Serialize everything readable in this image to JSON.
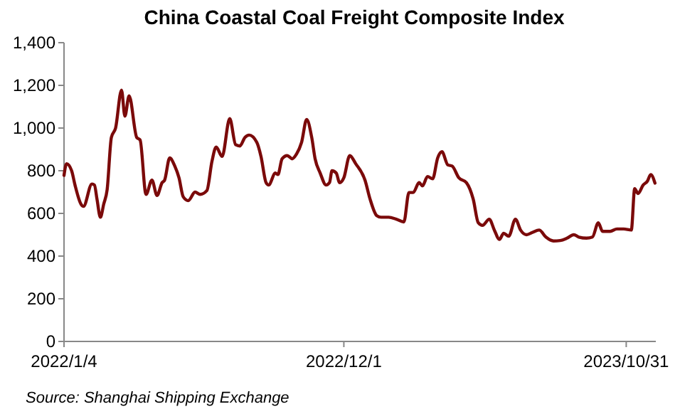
{
  "chart_data": {
    "type": "line",
    "title": "China Coastal Coal Freight Composite Index",
    "annotations": [
      "Source:  Shanghai Shipping Exchange"
    ],
    "x": [
      "2022-01-04",
      "2022-01-07",
      "2022-01-13",
      "2022-01-17",
      "2022-01-24",
      "2022-01-27",
      "2022-02-06",
      "2022-02-09",
      "2022-02-12",
      "2022-02-16",
      "2022-02-20",
      "2022-02-24",
      "2022-03-01",
      "2022-03-06",
      "2022-03-13",
      "2022-03-17",
      "2022-03-22",
      "2022-03-31",
      "2022-04-04",
      "2022-04-11",
      "2022-04-18",
      "2022-04-24",
      "2022-04-30",
      "2022-05-03",
      "2022-05-09",
      "2022-05-15",
      "2022-05-20",
      "2022-05-25",
      "2022-05-31",
      "2022-06-08",
      "2022-06-14",
      "2022-06-22",
      "2022-06-28",
      "2022-07-03",
      "2022-07-10",
      "2022-07-19",
      "2022-07-26",
      "2022-07-31",
      "2022-08-06",
      "2022-08-11",
      "2022-08-20",
      "2022-08-25",
      "2022-08-31",
      "2022-09-03",
      "2022-09-11",
      "2022-09-14",
      "2022-09-19",
      "2022-09-25",
      "2022-10-01",
      "2022-10-06",
      "2022-10-12",
      "2022-10-18",
      "2022-10-24",
      "2022-10-28",
      "2022-11-03",
      "2022-11-10",
      "2022-11-14",
      "2022-11-17",
      "2022-11-22",
      "2022-11-26",
      "2022-12-01",
      "2022-12-08",
      "2022-12-15",
      "2022-12-26",
      "2023-01-01",
      "2023-01-09",
      "2023-01-14",
      "2023-01-23",
      "2023-02-01",
      "2023-02-10",
      "2023-02-16",
      "2023-02-21",
      "2023-02-28",
      "2023-03-04",
      "2023-03-10",
      "2023-03-16",
      "2023-03-22",
      "2023-03-27",
      "2023-04-03",
      "2023-04-08",
      "2023-04-16",
      "2023-04-25",
      "2023-05-03",
      "2023-05-09",
      "2023-05-14",
      "2023-05-22",
      "2023-05-28",
      "2023-06-03",
      "2023-06-08",
      "2023-06-14",
      "2023-06-22",
      "2023-06-28",
      "2023-07-05",
      "2023-07-12",
      "2023-07-20",
      "2023-07-28",
      "2023-08-06",
      "2023-08-14",
      "2023-08-22",
      "2023-08-30",
      "2023-09-05",
      "2023-09-14",
      "2023-09-21",
      "2023-09-28",
      "2023-10-03",
      "2023-10-12",
      "2023-10-20",
      "2023-10-28",
      "2023-11-06",
      "2023-11-10",
      "2023-11-14",
      "2023-11-20",
      "2023-11-25",
      "2023-11-29",
      "2023-12-04"
    ],
    "series": [
      {
        "color": "#7b0a0a",
        "values": [
          778,
          833,
          800,
          733,
          644,
          633,
          738,
          733,
          667,
          582,
          644,
          711,
          956,
          1000,
          1178,
          1056,
          1151,
          956,
          944,
          689,
          756,
          684,
          744,
          756,
          860,
          822,
          767,
          678,
          660,
          700,
          689,
          707,
          844,
          911,
          867,
          1044,
          922,
          916,
          956,
          967,
          933,
          867,
          744,
          733,
          789,
          782,
          856,
          871,
          856,
          878,
          933,
          1040,
          956,
          856,
          789,
          733,
          744,
          800,
          789,
          744,
          767,
          871,
          833,
          756,
          667,
          589,
          582,
          582,
          573,
          560,
          698,
          698,
          744,
          729,
          773,
          762,
          860,
          889,
          827,
          822,
          767,
          744,
          667,
          556,
          544,
          573,
          522,
          478,
          507,
          493,
          573,
          522,
          500,
          511,
          522,
          489,
          471,
          473,
          484,
          500,
          489,
          484,
          489,
          556,
          516,
          516,
          527,
          527,
          522,
          716,
          693,
          733,
          751,
          782,
          742
        ]
      }
    ],
    "xlim": [
      "2022-01-04",
      "2023-12-05"
    ],
    "xticks": [
      {
        "value": "2022-01-04",
        "label": "2022/1/4"
      },
      {
        "value": "2022-12-01",
        "label": "2022/12/1"
      },
      {
        "value": "2023-10-31",
        "label": "2023/10/31"
      }
    ],
    "ylim": [
      0,
      1400
    ],
    "yticks": [
      {
        "value": 0,
        "label": "0"
      },
      {
        "value": 200,
        "label": "200"
      },
      {
        "value": 400,
        "label": "400"
      },
      {
        "value": 600,
        "label": "600"
      },
      {
        "value": 800,
        "label": "800"
      },
      {
        "value": 1000,
        "label": "1,000"
      },
      {
        "value": 1200,
        "label": "1,200"
      },
      {
        "value": 1400,
        "label": "1,400"
      }
    ],
    "grid": false,
    "marker": "none",
    "line_style": "solid"
  }
}
